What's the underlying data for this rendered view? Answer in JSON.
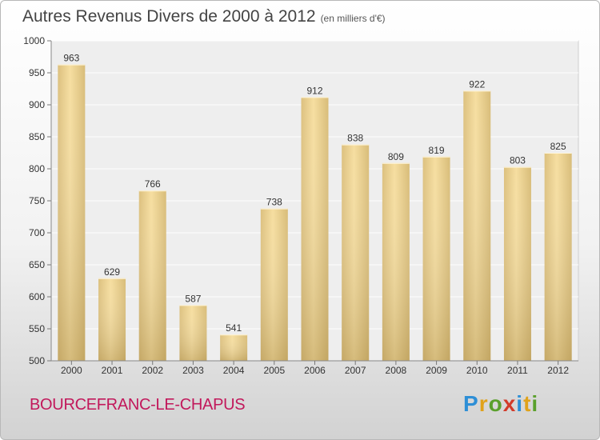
{
  "title": "Autres Revenus Divers de 2000 à 2012",
  "subtitle": "(en milliers d'€)",
  "commune": "BOURCEFRANC-LE-CHAPUS",
  "logo": [
    "P",
    "r",
    "o",
    "x",
    "i",
    "t",
    "i"
  ],
  "colors": {
    "bar_light": "#f6dea0",
    "bar_dark": "#c8aa64",
    "commune": "#c2185b"
  },
  "chart_data": {
    "type": "bar",
    "categories": [
      "2000",
      "2001",
      "2002",
      "2003",
      "2004",
      "2005",
      "2006",
      "2007",
      "2008",
      "2009",
      "2010",
      "2011",
      "2012"
    ],
    "values": [
      963,
      629,
      766,
      587,
      541,
      738,
      912,
      838,
      809,
      819,
      922,
      803,
      825
    ],
    "ylim": [
      500,
      1000
    ],
    "yticks": [
      500,
      550,
      600,
      650,
      700,
      750,
      800,
      850,
      900,
      950,
      1000
    ],
    "grid": true,
    "data_labels": true
  }
}
